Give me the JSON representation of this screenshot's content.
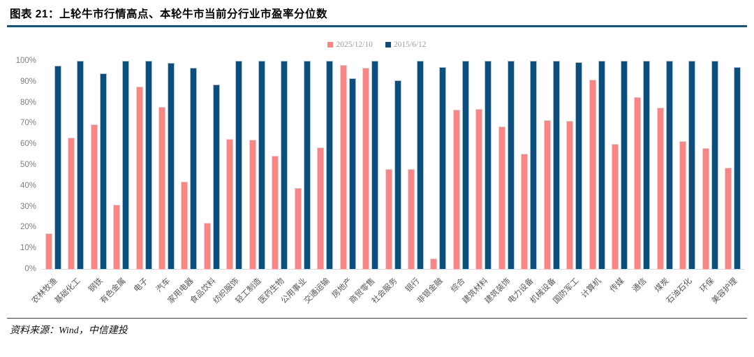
{
  "header": {
    "title": "图表  21：上轮牛市行情高点、本轮牛市当前分行业市盈率分位数"
  },
  "footer": {
    "source": "资料来源：Wind，中信建投"
  },
  "colors": {
    "series_2025": "#fa8585",
    "series_2015": "#0c4e7c",
    "title_rule": "#1b4f7c",
    "axis_tick_text": "#7f7f7f",
    "x_label_text": "#595959",
    "legend_text": "#9e9e9e",
    "baseline": "#d9d9d9"
  },
  "chart_data": {
    "type": "bar",
    "title": "",
    "xlabel": "",
    "ylabel": "",
    "ylim": [
      0,
      100
    ],
    "ytick_step": 10,
    "ytick_format": "percent",
    "grid": false,
    "legend_position": "top-center",
    "categories": [
      "农林牧渔",
      "基础化工",
      "钢铁",
      "有色金属",
      "电子",
      "汽车",
      "家用电器",
      "食品饮料",
      "纺织服饰",
      "轻工制造",
      "医药生物",
      "公用事业",
      "交通运输",
      "房地产",
      "商贸零售",
      "社会服务",
      "银行",
      "非银金融",
      "综合",
      "建筑材料",
      "建筑装饰",
      "电力设备",
      "机械设备",
      "国防军工",
      "计算机",
      "传媒",
      "通信",
      "煤炭",
      "石油石化",
      "环保",
      "美容护理"
    ],
    "series": [
      {
        "name": "2025/12/10",
        "color": "#fa8585",
        "values": [
          17,
          63,
          69.5,
          31,
          87.5,
          78,
          42,
          22,
          62.5,
          62,
          54.5,
          39,
          58.5,
          98,
          96.5,
          48,
          48,
          5,
          76.5,
          77,
          68.5,
          55.5,
          71.5,
          71,
          91,
          60,
          82.5,
          77.5,
          61.5,
          58,
          48.5
        ]
      },
      {
        "name": "2015/6/12",
        "color": "#0c4e7c",
        "values": [
          97.5,
          100,
          94,
          100,
          100,
          99,
          96.5,
          88.5,
          100,
          100,
          100,
          100,
          100,
          91.5,
          100,
          90.5,
          100,
          97,
          100,
          100,
          100,
          100,
          100,
          99.5,
          100,
          100,
          100,
          100,
          100,
          100,
          97
        ]
      }
    ]
  }
}
